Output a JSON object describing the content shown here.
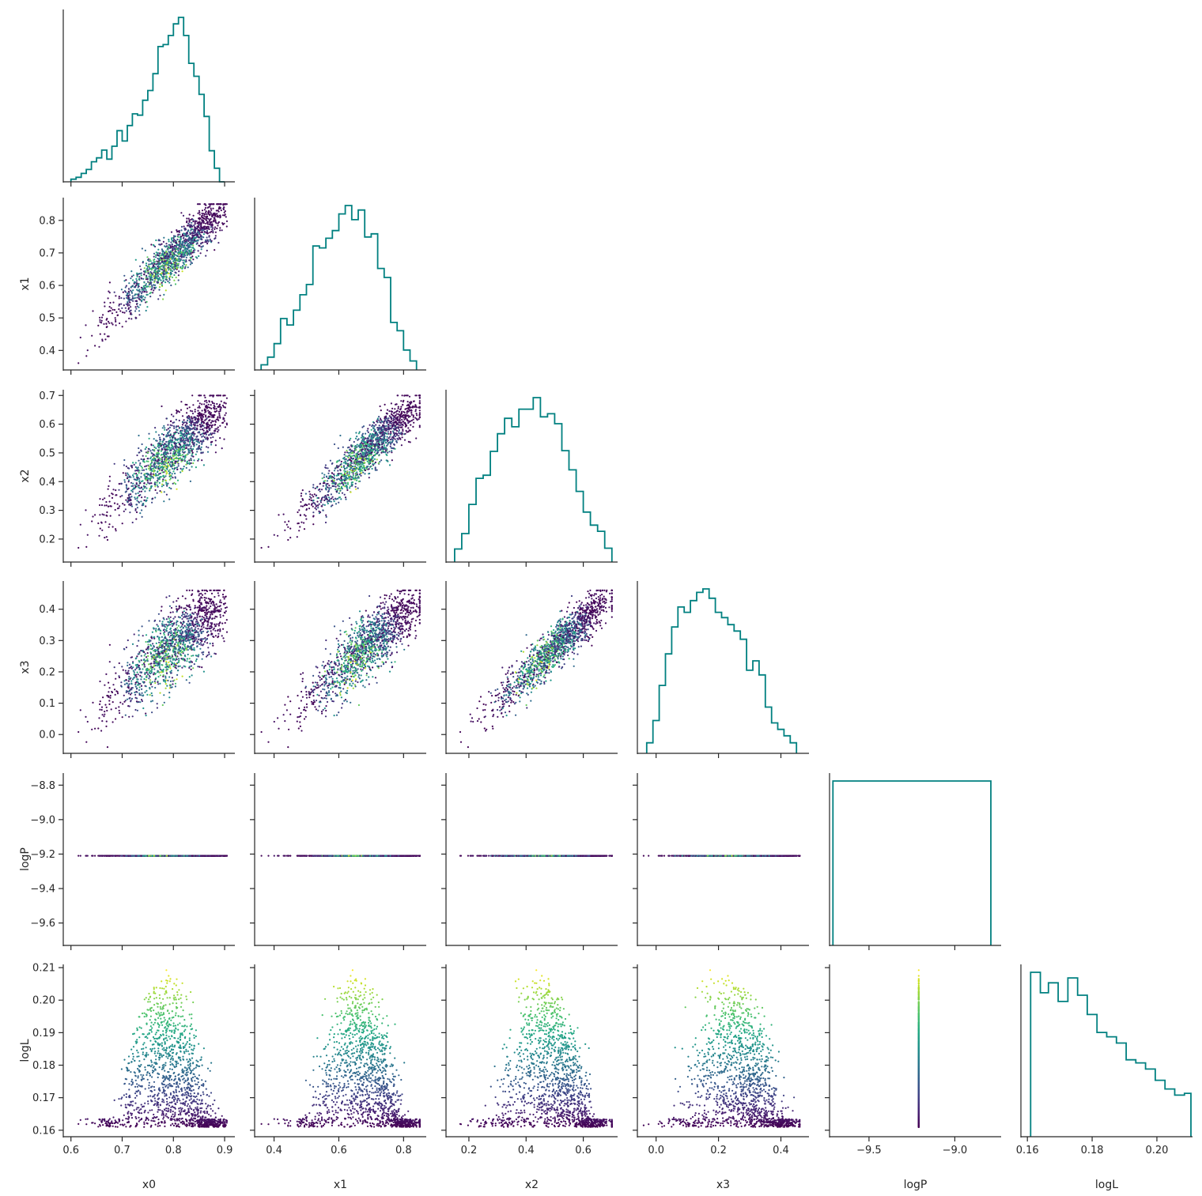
{
  "chart_data": {
    "type": "scatter",
    "variables": [
      "x0",
      "x1",
      "x2",
      "x3",
      "logP",
      "logL"
    ],
    "layout": "corner",
    "diagonal": "step-histogram",
    "off_diagonal": "scatter colored by logL",
    "colormap": "viridis",
    "histogram_color": "#008080",
    "ranges": {
      "x0": [
        0.585,
        0.92
      ],
      "x1": [
        0.34,
        0.87
      ],
      "x2": [
        0.12,
        0.72
      ],
      "x3": [
        -0.06,
        0.49
      ],
      "logP": [
        -9.73,
        -8.73
      ],
      "logL": [
        0.158,
        0.211
      ]
    },
    "ticks": {
      "x0": [
        0.6,
        0.7,
        0.8,
        0.9
      ],
      "x1": [
        0.4,
        0.6,
        0.8
      ],
      "x2": [
        0.2,
        0.4,
        0.6
      ],
      "x3": [
        0.0,
        0.2,
        0.4
      ],
      "logP": [
        -9.5,
        -9.0
      ],
      "logL": [
        0.16,
        0.18,
        0.2
      ]
    },
    "yticks": {
      "x1": [
        0.4,
        0.5,
        0.6,
        0.7,
        0.8
      ],
      "x2": [
        0.2,
        0.3,
        0.4,
        0.5,
        0.6,
        0.7
      ],
      "x3": [
        0.0,
        0.1,
        0.2,
        0.3,
        0.4
      ],
      "logP": [
        -9.6,
        -9.4,
        -9.2,
        -9.0,
        -8.8
      ],
      "logL": [
        0.16,
        0.17,
        0.18,
        0.19,
        0.2,
        0.21
      ]
    },
    "tick_labels": {
      "x0": [
        "0.6",
        "0.7",
        "0.8",
        "0.9"
      ],
      "x1": [
        "0.4",
        "0.6",
        "0.8"
      ],
      "x2": [
        "0.2",
        "0.4",
        "0.6"
      ],
      "x3": [
        "0.0",
        "0.2",
        "0.4"
      ],
      "logP": [
        "−9.5",
        "−9.0"
      ],
      "logL": [
        "0.16",
        "0.18",
        "0.20"
      ]
    },
    "ytick_labels": {
      "x1": [
        "0.4",
        "0.5",
        "0.6",
        "0.7",
        "0.8"
      ],
      "x2": [
        "0.2",
        "0.3",
        "0.4",
        "0.5",
        "0.6",
        "0.7"
      ],
      "x3": [
        "0.0",
        "0.1",
        "0.2",
        "0.3",
        "0.4"
      ],
      "logP": [
        "−9.6",
        "−9.4",
        "−9.2",
        "−9.0",
        "−8.8"
      ],
      "logL": [
        "0.16",
        "0.17",
        "0.18",
        "0.19",
        "0.20",
        "0.21"
      ]
    },
    "logP_value": -9.21,
    "histograms": {
      "x0": {
        "edges": [
          0.6,
          0.61,
          0.62,
          0.63,
          0.64,
          0.65,
          0.66,
          0.67,
          0.68,
          0.69,
          0.7,
          0.71,
          0.72,
          0.73,
          0.74,
          0.75,
          0.76,
          0.77,
          0.78,
          0.79,
          0.8,
          0.81,
          0.82,
          0.83,
          0.84,
          0.85,
          0.86,
          0.87,
          0.88,
          0.89,
          0.9
        ],
        "counts": [
          4,
          7,
          13,
          19,
          31,
          37,
          49,
          35,
          55,
          79,
          63,
          87,
          105,
          103,
          126,
          141,
          167,
          209,
          212,
          226,
          244,
          254,
          226,
          183,
          163,
          135,
          101,
          48,
          21,
          0
        ]
      },
      "x1": {
        "edges": [
          0.36,
          0.38,
          0.4,
          0.42,
          0.44,
          0.46,
          0.48,
          0.5,
          0.52,
          0.54,
          0.56,
          0.58,
          0.6,
          0.62,
          0.64,
          0.66,
          0.68,
          0.7,
          0.72,
          0.74,
          0.76,
          0.78,
          0.8,
          0.82,
          0.84
        ],
        "counts": [
          8,
          20,
          41,
          80,
          70,
          93,
          117,
          133,
          193,
          190,
          205,
          217,
          243,
          256,
          234,
          249,
          207,
          212,
          158,
          144,
          74,
          61,
          31,
          14
        ]
      },
      "x2": {
        "edges": [
          0.15,
          0.175,
          0.2,
          0.225,
          0.25,
          0.275,
          0.3,
          0.325,
          0.35,
          0.375,
          0.4,
          0.425,
          0.45,
          0.475,
          0.5,
          0.525,
          0.55,
          0.575,
          0.6,
          0.625,
          0.65,
          0.675,
          0.7
        ],
        "counts": [
          17,
          37,
          75,
          109,
          113,
          144,
          167,
          187,
          176,
          199,
          199,
          214,
          189,
          193,
          180,
          145,
          120,
          92,
          65,
          48,
          40,
          18
        ]
      },
      "x3": {
        "edges": [
          -0.03,
          -0.01,
          0.01,
          0.03,
          0.05,
          0.07,
          0.09,
          0.11,
          0.13,
          0.15,
          0.17,
          0.19,
          0.21,
          0.23,
          0.25,
          0.27,
          0.29,
          0.31,
          0.33,
          0.35,
          0.37,
          0.39,
          0.41,
          0.43,
          0.45
        ],
        "counts": [
          18,
          56,
          116,
          170,
          216,
          250,
          241,
          261,
          275,
          281,
          265,
          241,
          232,
          220,
          209,
          195,
          142,
          158,
          134,
          79,
          52,
          41,
          30,
          18
        ]
      },
      "logP": {
        "edges": [
          -9.71,
          -8.79
        ],
        "counts": [
          1
        ]
      },
      "logL": {
        "edges": [
          0.161,
          0.164,
          0.1665,
          0.1695,
          0.1725,
          0.1755,
          0.1785,
          0.1815,
          0.1845,
          0.1875,
          0.1905,
          0.1935,
          0.1965,
          0.1995,
          0.2025,
          0.2055,
          0.2085,
          0.2105
        ],
        "counts": [
          265,
          232,
          248,
          218,
          256,
          228,
          197,
          168,
          161,
          151,
          124,
          119,
          109,
          91,
          77,
          67,
          70
        ]
      }
    }
  }
}
